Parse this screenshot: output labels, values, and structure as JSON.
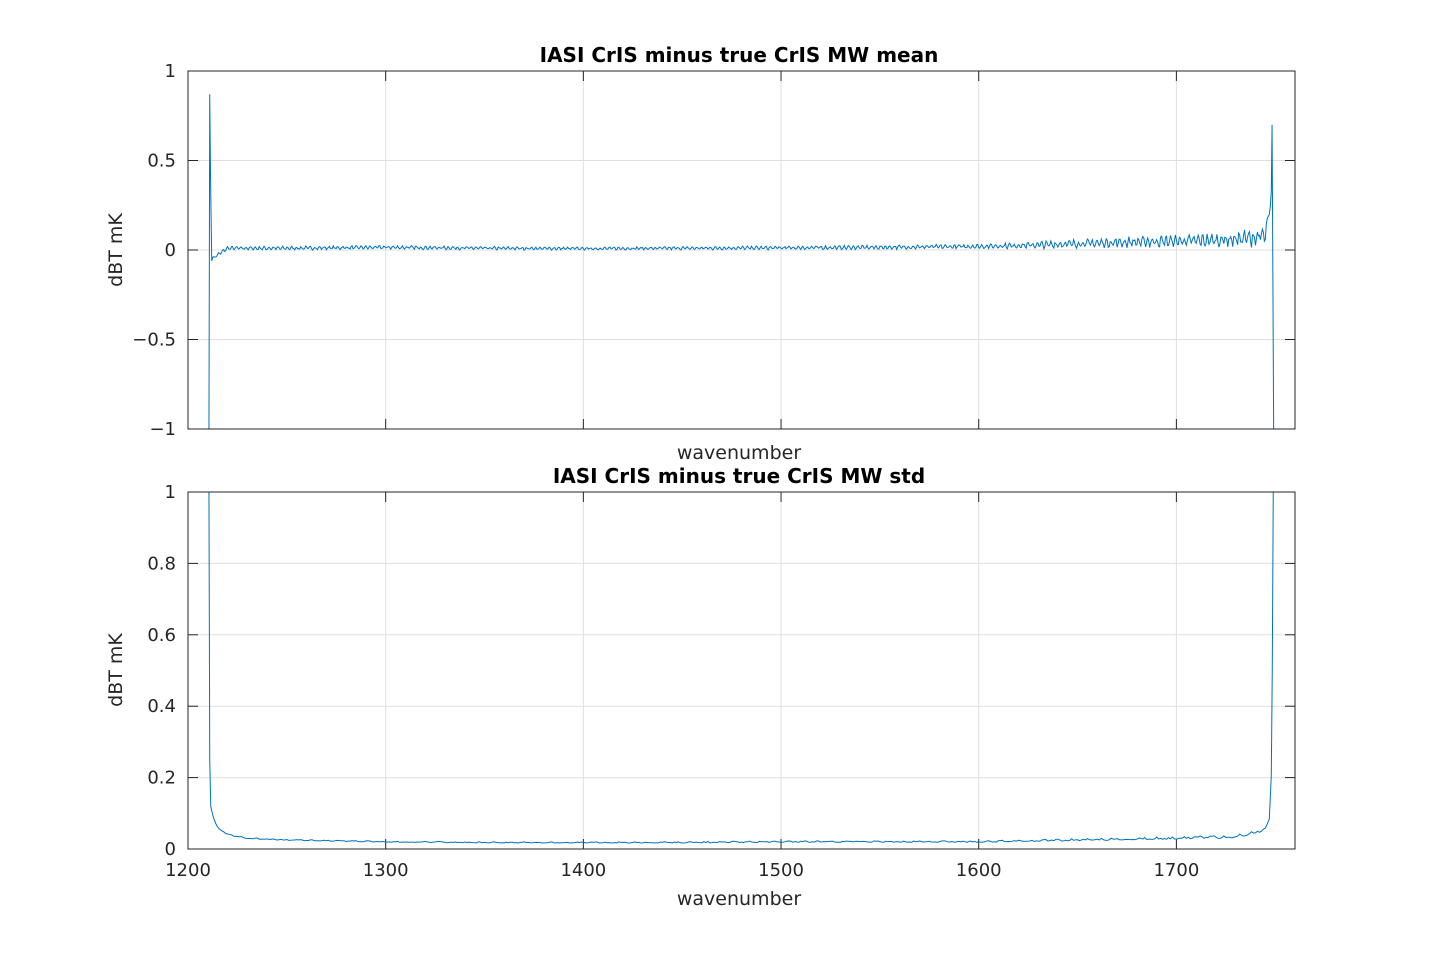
{
  "chart_data": [
    {
      "type": "line",
      "title": "IASI CrIS minus true CrIS MW mean",
      "xlabel": "wavenumber",
      "ylabel": "dBT mK",
      "xlim": [
        1200,
        1760
      ],
      "ylim": [
        -1,
        1
      ],
      "xticks": [
        1200,
        1300,
        1400,
        1500,
        1600,
        1700
      ],
      "xtick_labels": [],
      "yticks": [
        -1,
        -0.5,
        0,
        0.5,
        1
      ],
      "ytick_labels": [
        "−1",
        "−0.5",
        "0",
        "0.5",
        "1"
      ],
      "grid": true,
      "series": [
        {
          "color": "#0072bd",
          "x": [
            1210.6,
            1211.0,
            1211.4,
            1212.0,
            1220,
            1250,
            1300,
            1350,
            1400,
            1450,
            1500,
            1550,
            1600,
            1620,
            1650,
            1680,
            1700,
            1720,
            1730,
            1740,
            1745,
            1748.0,
            1748.4,
            1748.8,
            1749.2
          ],
          "y": [
            -1.0,
            0.87,
            0.41,
            -0.05,
            0.01,
            0.01,
            0.015,
            0.01,
            0.008,
            0.01,
            0.012,
            0.015,
            0.02,
            0.025,
            0.035,
            0.045,
            0.05,
            0.055,
            0.06,
            0.07,
            0.08,
            0.28,
            0.7,
            -0.13,
            -1.0
          ],
          "noise_amplitude_envelope": {
            "x": [
              1212,
              1300,
              1400,
              1500,
              1600,
              1640,
              1680,
              1720,
              1748
            ],
            "amp": [
              0.012,
              0.012,
              0.01,
              0.012,
              0.015,
              0.025,
              0.035,
              0.045,
              0.07
            ]
          }
        }
      ]
    },
    {
      "type": "line",
      "title": "IASI CrIS minus true CrIS MW std",
      "xlabel": "wavenumber",
      "ylabel": "dBT mK",
      "xlim": [
        1200,
        1760
      ],
      "ylim": [
        0,
        1
      ],
      "xticks": [
        1200,
        1300,
        1400,
        1500,
        1600,
        1700
      ],
      "xtick_labels": [
        "1200",
        "1300",
        "1400",
        "1500",
        "1600",
        "1700"
      ],
      "yticks": [
        0,
        0.2,
        0.4,
        0.6,
        0.8,
        1
      ],
      "ytick_labels": [
        "0",
        "0.2",
        "0.4",
        "0.6",
        "0.8",
        "1"
      ],
      "grid": true,
      "series": [
        {
          "color": "#0072bd",
          "x": [
            1210.6,
            1211.0,
            1211.5,
            1212.5,
            1215,
            1220,
            1230,
            1250,
            1300,
            1350,
            1400,
            1450,
            1500,
            1550,
            1600,
            1620,
            1650,
            1680,
            1700,
            1720,
            1730,
            1740,
            1745,
            1747,
            1748.0,
            1748.5,
            1749.0
          ],
          "y": [
            1.0,
            0.25,
            0.12,
            0.09,
            0.06,
            0.04,
            0.03,
            0.025,
            0.02,
            0.018,
            0.018,
            0.018,
            0.02,
            0.02,
            0.02,
            0.022,
            0.025,
            0.028,
            0.03,
            0.032,
            0.035,
            0.045,
            0.055,
            0.08,
            0.2,
            0.5,
            1.0
          ],
          "noise_amplitude_envelope": {
            "x": [
              1212,
              1300,
              1400,
              1500,
              1600,
              1650,
              1700,
              1740
            ],
            "amp": [
              0.004,
              0.004,
              0.004,
              0.005,
              0.005,
              0.007,
              0.009,
              0.012
            ]
          }
        }
      ]
    }
  ]
}
